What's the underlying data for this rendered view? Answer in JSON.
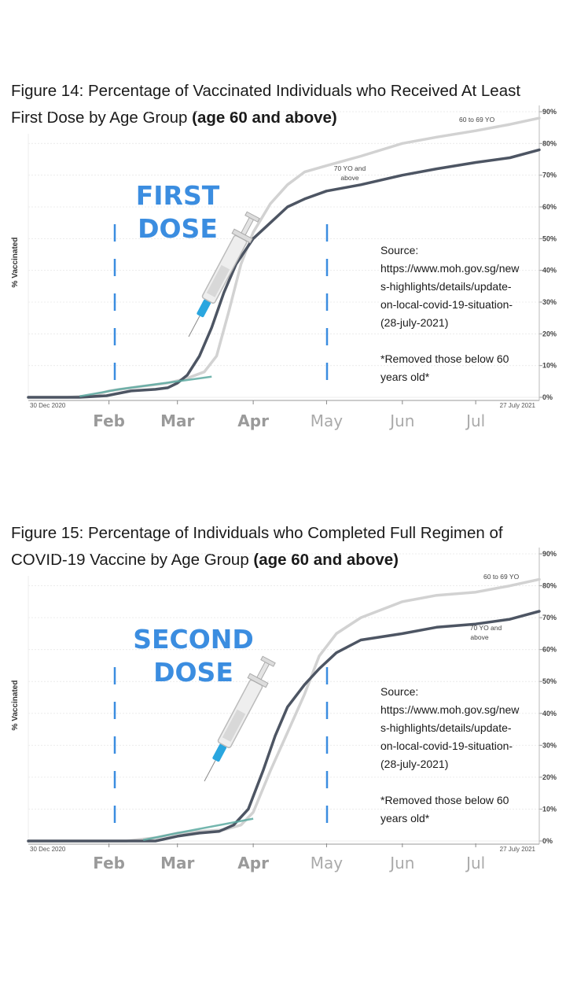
{
  "figures": [
    {
      "title_plain": "Figure 14: Percentage of Vaccinated Individuals who Received At Least",
      "title_line2": "First Dose by Age Group ",
      "title_bold": "(age 60 and above)",
      "dose_line1": "FIRST",
      "dose_line2": "DOSE",
      "source_text": "Source:\nhttps://www.moh.gov.sg/new\ns-highlights/details/update-\non-local-covid-19-situation-\n(28-july-2021)\n\n*Removed those below 60\nyears old*"
    },
    {
      "title_plain": "Figure 15: Percentage of Individuals who Completed Full Regimen of",
      "title_line2": "COVID-19 Vaccine by Age Group ",
      "title_bold": "(age 60 and above)",
      "dose_line1": "SECOND",
      "dose_line2": "DOSE",
      "source_text": "Source:\nhttps://www.moh.gov.sg/new\ns-highlights/details/update-\non-local-covid-19-situation-\n(28-july-2021)\n\n*Removed those below 60\nyears old*"
    }
  ],
  "chart_data": [
    {
      "type": "line",
      "ylabel": "% Vaccinated",
      "ylim": [
        0,
        90
      ],
      "yticks": [
        "0%",
        "10%",
        "20%",
        "30%",
        "40%",
        "50%",
        "60%",
        "70%",
        "80%",
        "90%"
      ],
      "x_start_label": "30 Dec 2020",
      "x_end_label": "27 July 2021",
      "month_labels": [
        "Feb",
        "Mar",
        "Apr",
        "May",
        "Jun",
        "Jul"
      ],
      "series": [
        {
          "name": "60 to 69 YO",
          "color": "#d2d2d2",
          "x": [
            "2020-12-30",
            "2021-01-15",
            "2021-01-25",
            "2021-02-01",
            "2021-02-10",
            "2021-02-20",
            "2021-02-25",
            "2021-03-05",
            "2021-03-12",
            "2021-03-17",
            "2021-03-22",
            "2021-03-27",
            "2021-04-01",
            "2021-04-08",
            "2021-04-15",
            "2021-04-22",
            "2021-05-01",
            "2021-05-15",
            "2021-06-01",
            "2021-06-15",
            "2021-07-01",
            "2021-07-15",
            "2021-07-27"
          ],
          "values": [
            0,
            0,
            0.5,
            2,
            3,
            4,
            4.5,
            6,
            8,
            13,
            27,
            42,
            52,
            61,
            67,
            71,
            73,
            76,
            80,
            82,
            84,
            86,
            88
          ]
        },
        {
          "name": "70 YO and above",
          "color": "#4d5563",
          "x": [
            "2020-12-30",
            "2021-01-20",
            "2021-01-31",
            "2021-02-10",
            "2021-02-20",
            "2021-02-25",
            "2021-03-01",
            "2021-03-05",
            "2021-03-10",
            "2021-03-15",
            "2021-03-20",
            "2021-03-25",
            "2021-04-01",
            "2021-04-08",
            "2021-04-15",
            "2021-04-22",
            "2021-05-01",
            "2021-05-15",
            "2021-06-01",
            "2021-06-15",
            "2021-07-01",
            "2021-07-15",
            "2021-07-27"
          ],
          "values": [
            0,
            0,
            0.5,
            2,
            2.5,
            3,
            4.5,
            7,
            13,
            22,
            33,
            42,
            50,
            55,
            60,
            62.5,
            65,
            67,
            70,
            72,
            74,
            75.5,
            78
          ]
        }
      ],
      "series_labels": [
        "60 to 69 YO",
        "70 YO and",
        "above"
      ]
    },
    {
      "type": "line",
      "ylabel": "% Vaccinated",
      "ylim": [
        0,
        90
      ],
      "yticks": [
        "0%",
        "10%",
        "20%",
        "30%",
        "40%",
        "50%",
        "60%",
        "70%",
        "80%",
        "90%"
      ],
      "x_start_label": "30 Dec 2020",
      "x_end_label": "27 July 2021",
      "month_labels": [
        "Feb",
        "Mar",
        "Apr",
        "May",
        "Jun",
        "Jul"
      ],
      "series": [
        {
          "name": "60 to 69 YO",
          "color": "#d2d2d2",
          "x": [
            "2020-12-30",
            "2021-02-08",
            "2021-02-20",
            "2021-03-01",
            "2021-03-10",
            "2021-03-20",
            "2021-03-27",
            "2021-04-01",
            "2021-04-08",
            "2021-04-15",
            "2021-04-22",
            "2021-04-28",
            "2021-05-05",
            "2021-05-15",
            "2021-06-01",
            "2021-06-15",
            "2021-07-01",
            "2021-07-15",
            "2021-07-27"
          ],
          "values": [
            0,
            0,
            1,
            2.5,
            3,
            3.5,
            5,
            9,
            22,
            34,
            46,
            58,
            65,
            70,
            75,
            77,
            78,
            80,
            82
          ]
        },
        {
          "name": "70 YO and above",
          "color": "#4d5563",
          "x": [
            "2020-12-30",
            "2021-02-20",
            "2021-03-01",
            "2021-03-10",
            "2021-03-18",
            "2021-03-24",
            "2021-03-30",
            "2021-04-05",
            "2021-04-10",
            "2021-04-15",
            "2021-04-22",
            "2021-04-28",
            "2021-05-05",
            "2021-05-15",
            "2021-06-01",
            "2021-06-15",
            "2021-07-01",
            "2021-07-15",
            "2021-07-27"
          ],
          "values": [
            0,
            0,
            1.5,
            2.5,
            3,
            5,
            10,
            22,
            33,
            42,
            49,
            54,
            59,
            63,
            65,
            67,
            68,
            69.5,
            72
          ]
        }
      ],
      "series_labels": [
        "60 to 69 YO",
        "70 YO and",
        "above"
      ]
    }
  ]
}
